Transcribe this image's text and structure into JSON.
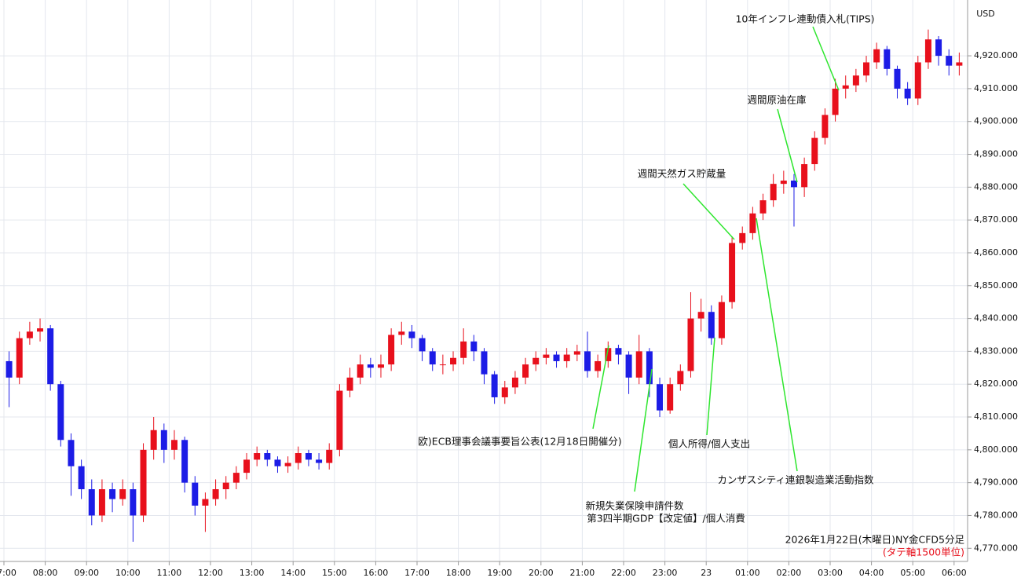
{
  "chart_data": {
    "type": "candlestick",
    "currency": "USD",
    "caption": "2026年1月22日(木曜日)NY金CFD5分足",
    "subcaption": "(タテ軸1500単位)",
    "up_color": "#e8101c",
    "down_color": "#1c1ce6",
    "annotation_color": "#2ee62e",
    "grid": true,
    "x": [
      "07:00",
      "07:15",
      "07:30",
      "07:45",
      "08:00",
      "08:15",
      "08:30",
      "08:45",
      "09:00",
      "09:15",
      "09:30",
      "09:45",
      "10:00",
      "10:15",
      "10:30",
      "10:45",
      "11:00",
      "11:15",
      "11:30",
      "11:45",
      "12:00",
      "12:15",
      "12:30",
      "12:45",
      "13:00",
      "13:15",
      "13:30",
      "13:45",
      "14:00",
      "14:15",
      "14:30",
      "14:45",
      "15:00",
      "15:15",
      "15:30",
      "15:45",
      "16:00",
      "16:15",
      "16:30",
      "16:45",
      "17:00",
      "17:15",
      "17:30",
      "17:45",
      "18:00",
      "18:15",
      "18:30",
      "18:45",
      "19:00",
      "19:15",
      "19:30",
      "19:45",
      "20:00",
      "20:15",
      "20:30",
      "20:45",
      "21:00",
      "21:15",
      "21:30",
      "21:45",
      "22:00",
      "22:15",
      "22:30",
      "22:45",
      "23:00",
      "23:15",
      "23:30",
      "23:45",
      "00:00",
      "00:15",
      "00:30",
      "00:45",
      "01:00",
      "01:15",
      "01:30",
      "01:45",
      "02:00",
      "02:15",
      "02:30",
      "02:45",
      "03:00",
      "03:15",
      "03:30",
      "03:45",
      "04:00",
      "04:15",
      "04:30",
      "04:45",
      "05:00",
      "05:15",
      "05:30",
      "05:45",
      "06:00"
    ],
    "open": [
      4827,
      4822,
      4834,
      4836,
      4837,
      4820,
      4803,
      4795,
      4788,
      4780,
      4788,
      4785,
      4788,
      4780,
      4800,
      4806,
      4800,
      4803,
      4790,
      4783,
      4785,
      4788,
      4790,
      4793,
      4797,
      4799,
      4797,
      4795,
      4796,
      4799,
      4797,
      4796,
      4800,
      4818,
      4822,
      4826,
      4825,
      4826,
      4835,
      4836,
      4834,
      4830,
      4826,
      4826,
      4828,
      4833,
      4830,
      4823,
      4816,
      4819,
      4822,
      4826,
      4828,
      4829,
      4827,
      4829,
      4830,
      4824,
      4827,
      4831,
      4829,
      4822,
      4830,
      4820,
      4812,
      4820,
      4824,
      4840,
      4842,
      4834,
      4845,
      4863,
      4866,
      4872,
      4876,
      4881,
      4882,
      4880,
      4887,
      4895,
      4902,
      4910,
      4911,
      4914,
      4918,
      4922,
      4916,
      4910,
      4907,
      4918,
      4925,
      4920,
      4917
    ],
    "high": [
      4830,
      4836,
      4839,
      4840,
      4838,
      4821,
      4805,
      4797,
      4791,
      4791,
      4790,
      4791,
      4790,
      4802,
      4810,
      4808,
      4806,
      4804,
      4792,
      4787,
      4791,
      4792,
      4795,
      4799,
      4801,
      4800,
      4798,
      4798,
      4801,
      4800,
      4799,
      4802,
      4820,
      4825,
      4829,
      4828,
      4829,
      4837,
      4839,
      4838,
      4835,
      4831,
      4829,
      4830,
      4837,
      4835,
      4831,
      4824,
      4821,
      4824,
      4828,
      4830,
      4831,
      4830,
      4831,
      4832,
      4836,
      4829,
      4833,
      4832,
      4830,
      4835,
      4831,
      4822,
      4822,
      4826,
      4848,
      4846,
      4844,
      4847,
      4865,
      4868,
      4874,
      4878,
      4884,
      4885,
      4884,
      4889,
      4897,
      4904,
      4913,
      4914,
      4916,
      4920,
      4924,
      4923,
      4917,
      4912,
      4920,
      4928,
      4926,
      4922,
      4921
    ],
    "low": [
      4813,
      4820,
      4832,
      4833,
      4818,
      4801,
      4786,
      4785,
      4777,
      4778,
      4781,
      4783,
      4772,
      4778,
      4797,
      4796,
      4797,
      4787,
      4780,
      4775,
      4783,
      4785,
      4788,
      4791,
      4795,
      4795,
      4793,
      4793,
      4794,
      4795,
      4794,
      4794,
      4798,
      4816,
      4820,
      4822,
      4822,
      4824,
      4832,
      4831,
      4827,
      4824,
      4823,
      4824,
      4826,
      4827,
      4820,
      4814,
      4814,
      4817,
      4820,
      4824,
      4826,
      4825,
      4825,
      4827,
      4822,
      4822,
      4825,
      4826,
      4817,
      4820,
      4816,
      4810,
      4811,
      4818,
      4822,
      4836,
      4832,
      4832,
      4843,
      4861,
      4864,
      4870,
      4874,
      4878,
      4868,
      4877,
      4885,
      4893,
      4900,
      4907,
      4909,
      4912,
      4916,
      4914,
      4907,
      4905,
      4905,
      4916,
      4917,
      4914,
      4914
    ],
    "close": [
      4822,
      4834,
      4836,
      4837,
      4820,
      4803,
      4795,
      4788,
      4780,
      4788,
      4785,
      4788,
      4780,
      4800,
      4806,
      4800,
      4803,
      4790,
      4783,
      4785,
      4788,
      4790,
      4793,
      4797,
      4799,
      4797,
      4795,
      4796,
      4799,
      4797,
      4796,
      4800,
      4818,
      4822,
      4826,
      4825,
      4826,
      4835,
      4836,
      4834,
      4830,
      4826,
      4826,
      4828,
      4833,
      4830,
      4823,
      4816,
      4819,
      4822,
      4826,
      4828,
      4829,
      4827,
      4829,
      4830,
      4824,
      4827,
      4831,
      4829,
      4822,
      4830,
      4820,
      4812,
      4820,
      4824,
      4840,
      4842,
      4834,
      4845,
      4863,
      4866,
      4872,
      4876,
      4881,
      4882,
      4880,
      4887,
      4895,
      4902,
      4910,
      4911,
      4914,
      4918,
      4922,
      4916,
      4910,
      4907,
      4918,
      4925,
      4920,
      4917,
      4918
    ],
    "ylim": [
      4766,
      4937
    ],
    "yticks": [
      {
        "value": 4770,
        "label": "4,770.000"
      },
      {
        "value": 4780,
        "label": "4,780.000"
      },
      {
        "value": 4790,
        "label": "4,790.000"
      },
      {
        "value": 4800,
        "label": "4,800.000"
      },
      {
        "value": 4810,
        "label": "4,810.000"
      },
      {
        "value": 4820,
        "label": "4,820.000"
      },
      {
        "value": 4830,
        "label": "4,830.000"
      },
      {
        "value": 4840,
        "label": "4,840.000"
      },
      {
        "value": 4850,
        "label": "4,850.000"
      },
      {
        "value": 4860,
        "label": "4,860.000"
      },
      {
        "value": 4870,
        "label": "4,870.000"
      },
      {
        "value": 4880,
        "label": "4,880.000"
      },
      {
        "value": 4890,
        "label": "4,890.000"
      },
      {
        "value": 4900,
        "label": "4,900.000"
      },
      {
        "value": 4910,
        "label": "4,910.000"
      },
      {
        "value": 4920,
        "label": "4,920.000"
      }
    ],
    "xticks": [
      "07:00",
      "08:00",
      "09:00",
      "10:00",
      "11:00",
      "12:00",
      "13:00",
      "14:00",
      "15:00",
      "16:00",
      "17:00",
      "18:00",
      "19:00",
      "20:00",
      "21:00",
      "22:00",
      "23:00",
      {
        "value": "00:00",
        "label": "23"
      },
      "01:00",
      "02:00",
      "03:00",
      "04:00",
      "05:00",
      "06:00"
    ],
    "annotations": [
      "10年インフレ連動債入札(TIPS)",
      "週間原油在庫",
      "週間天然ガス貯蔵量",
      "欧)ECB理事会議事要旨公表(12月18日開催分)",
      "個人所得/個人支出",
      "カンザスシティ連銀製造業活動指数",
      "新規失業保険申請件数",
      "第3四半期GDP【改定値】/個人消費"
    ]
  }
}
